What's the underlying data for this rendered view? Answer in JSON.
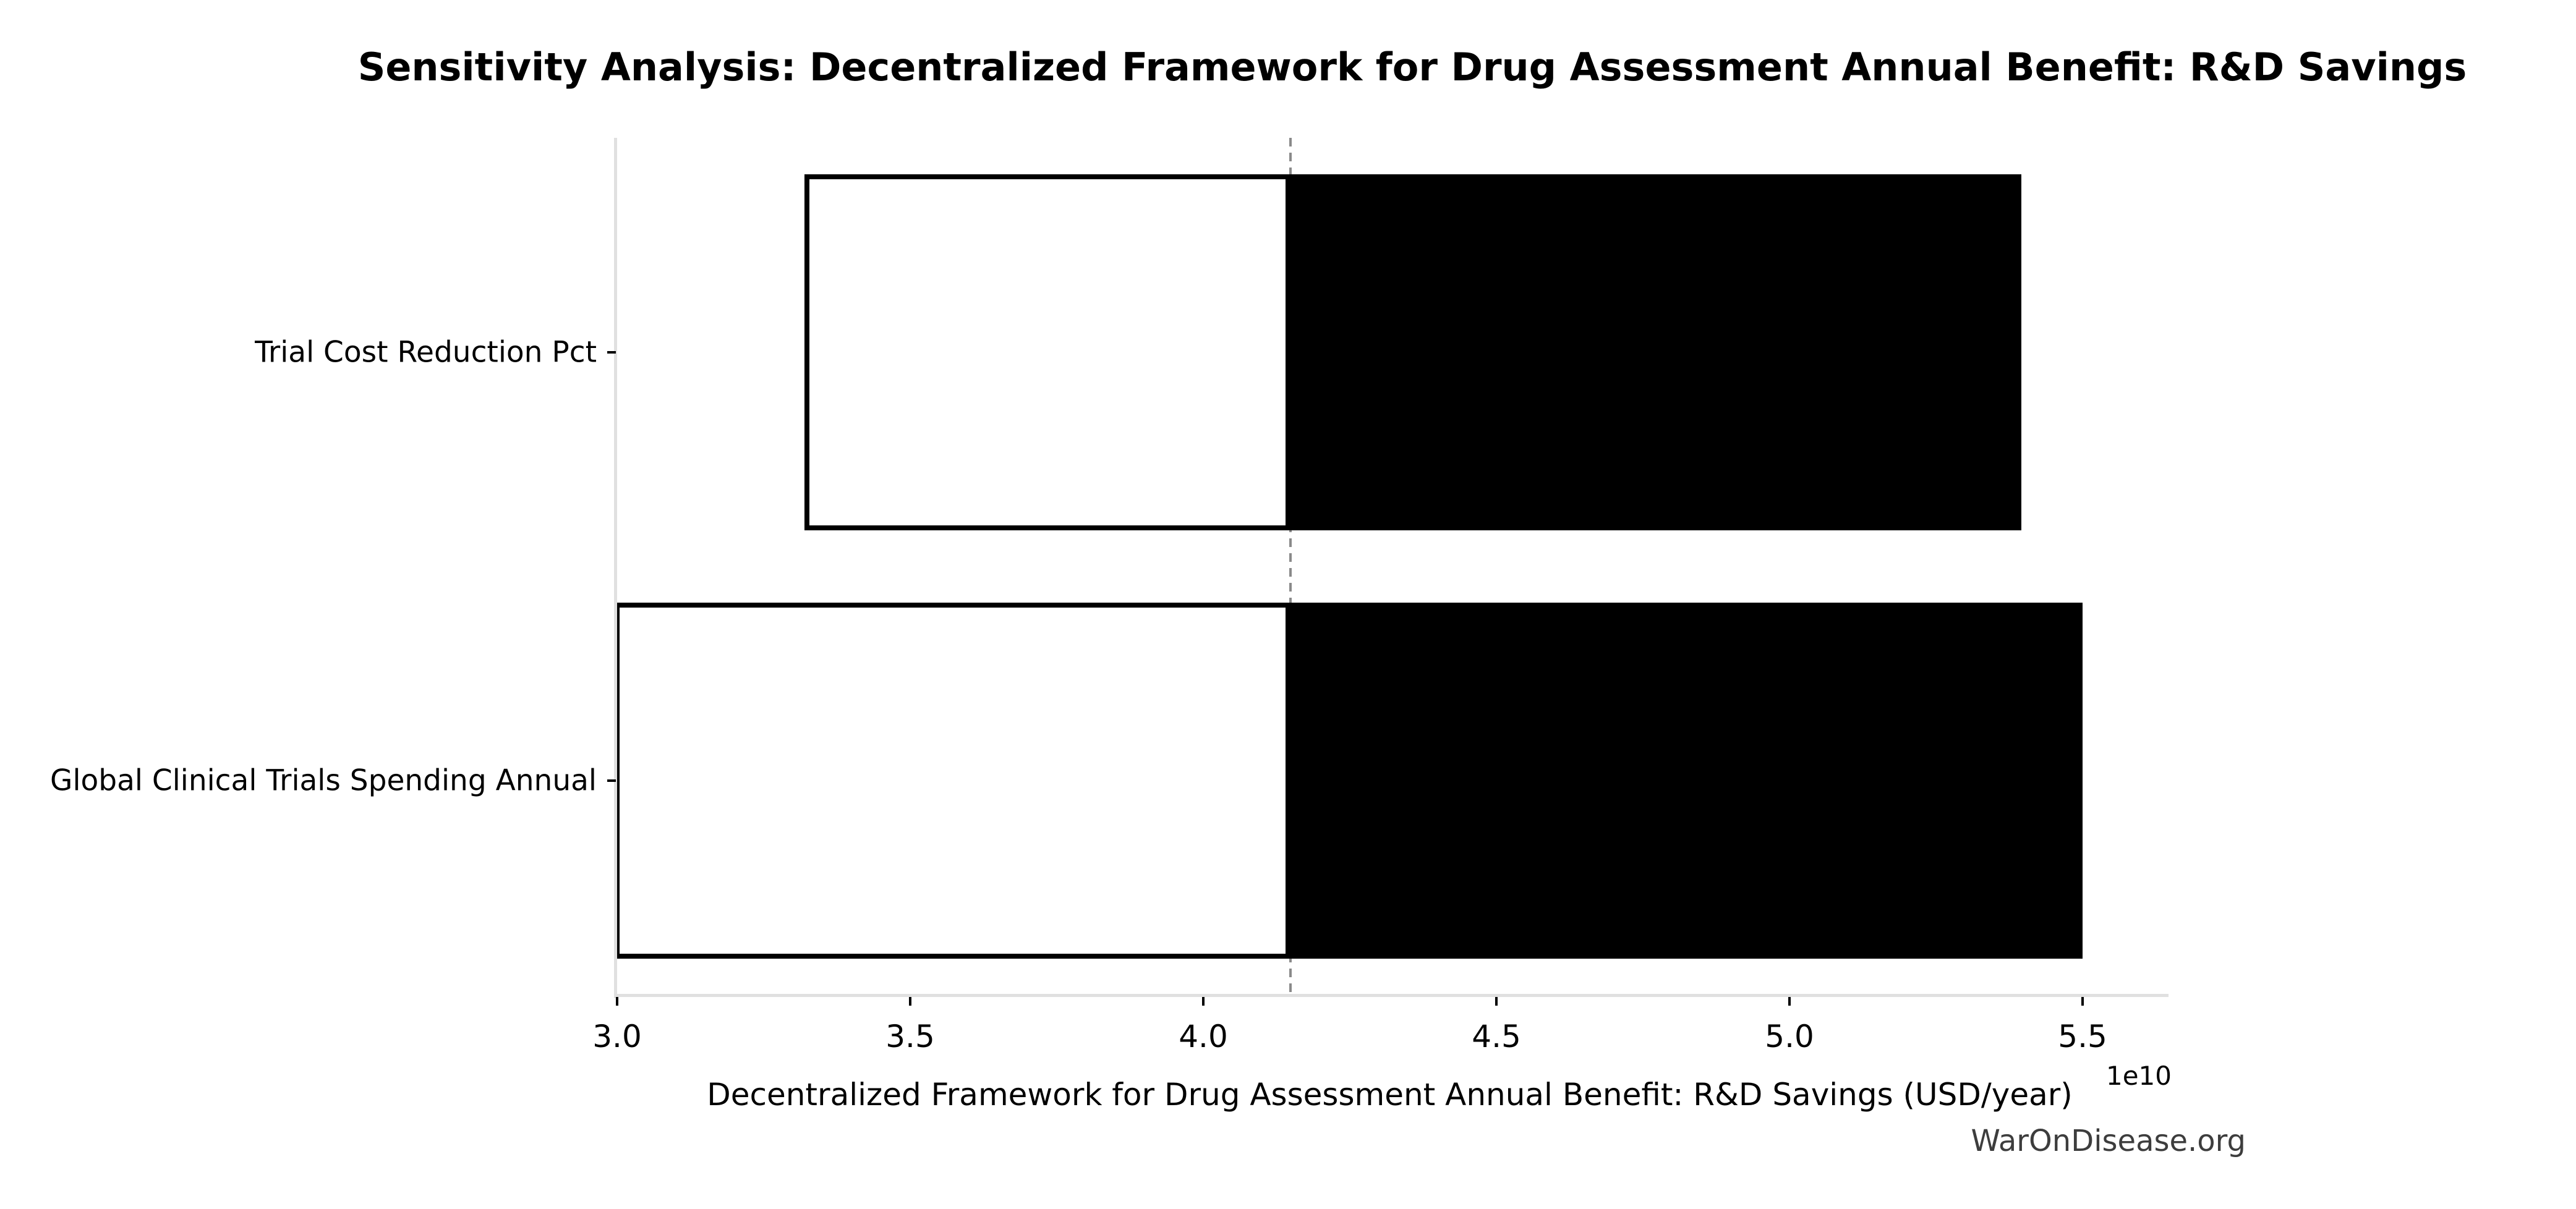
{
  "figure": {
    "watermark": "WarOnDisease.org"
  },
  "chart_data": {
    "type": "bar",
    "subtype": "tornado-horizontal",
    "title": "Sensitivity Analysis: Decentralized Framework for Drug Assessment Annual Benefit: R&D Savings",
    "xlabel": "Decentralized Framework for Drug Assessment Annual Benefit: R&D Savings (USD/year)",
    "ylabel": "",
    "x_offset_label": "1e10",
    "x_scale_factor": 10000000000.0,
    "xlim": [
      3.0,
      5.636
    ],
    "x_ticks": [
      3.0,
      3.5,
      4.0,
      4.5,
      5.0,
      5.5
    ],
    "baseline": 4.149,
    "categories": [
      "Trial Cost Reduction Pct",
      "Global Clinical Trials Spending Annual"
    ],
    "series": [
      {
        "name": "low_output",
        "values": [
          3.32,
          3.0
        ]
      },
      {
        "name": "high_output",
        "values": [
          5.395,
          5.5
        ]
      }
    ],
    "grid": false,
    "legend_position": "none",
    "layout": {
      "bar_height_frac": 0.415,
      "row_center_fracs": [
        0.25,
        0.75
      ]
    },
    "colors": {
      "bar_fill_low": "#ffffff",
      "bar_fill_high": "#000000",
      "bar_edge": "#000000",
      "baseline_line": "#8a8a8a",
      "spine": "#e0e0e0",
      "tick_mark": "#000000",
      "text": "#000000",
      "watermark_text": "#3d3d3d"
    }
  }
}
